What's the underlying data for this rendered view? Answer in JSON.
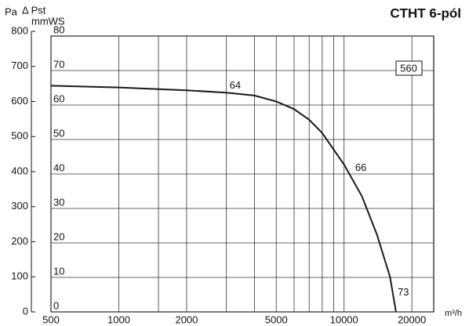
{
  "chart_data": {
    "type": "line",
    "title": "CTHT 6-pól",
    "model_label": "560",
    "y_unit": "Pa",
    "y_label": "Δ Pst",
    "y2_unit": "mmWS",
    "x_unit": "m³/h",
    "x_log": true,
    "xlim": [
      500,
      25000
    ],
    "xticks": [
      500,
      1000,
      2000,
      5000,
      10000,
      20000
    ],
    "xminor": [
      1500,
      3000,
      4000,
      6000,
      7000,
      8000,
      9000
    ],
    "ylim": [
      0,
      800
    ],
    "yticks": [
      0,
      100,
      200,
      300,
      400,
      500,
      600,
      700,
      800
    ],
    "y2lim": [
      0,
      80
    ],
    "y2ticks": [
      0,
      10,
      20,
      30,
      40,
      50,
      60,
      70,
      80
    ],
    "grid": true,
    "series": [
      {
        "color": "#1a1a1a",
        "x": [
          500,
          1000,
          2000,
          3000,
          4000,
          5000,
          6000,
          7000,
          8000,
          10000,
          12000,
          14000,
          16000,
          17000
        ],
        "values": [
          645,
          640,
          632,
          625,
          617,
          600,
          578,
          548,
          510,
          420,
          330,
          220,
          100,
          0
        ]
      }
    ],
    "annotations": [
      {
        "text": "64",
        "x": 3100,
        "y": 645
      },
      {
        "text": "66",
        "x": 11200,
        "y": 410
      },
      {
        "text": "73",
        "x": 17300,
        "y": 55
      }
    ]
  }
}
